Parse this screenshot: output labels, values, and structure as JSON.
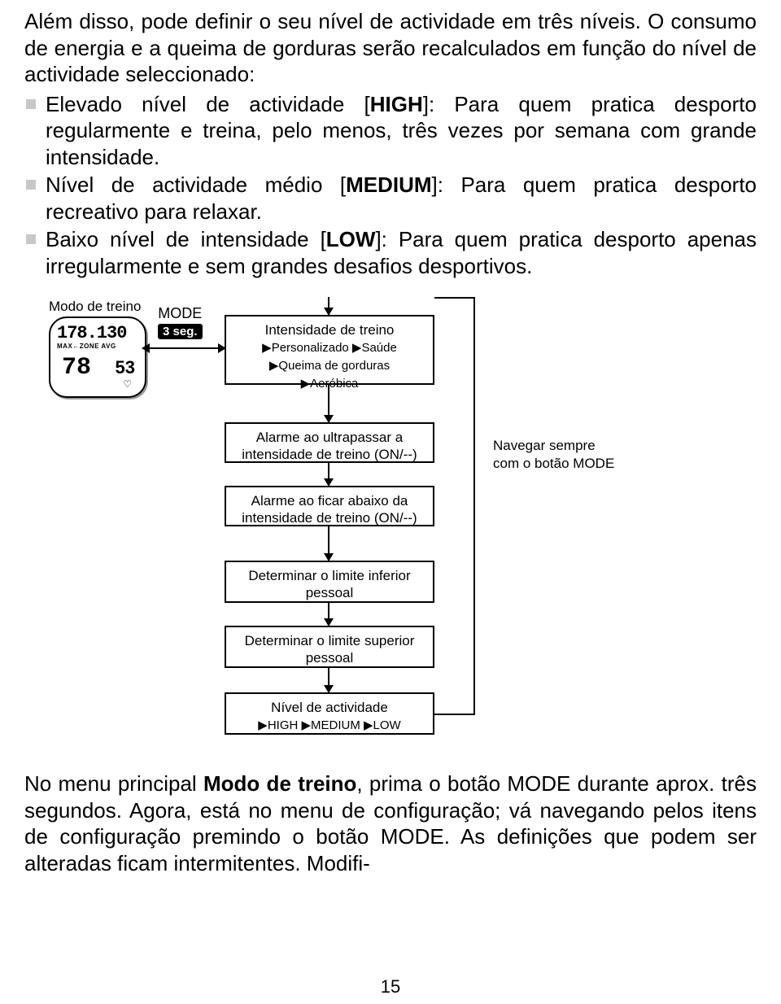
{
  "intro": {
    "p1": "Além disso, pode definir o seu nível de actividade em três níveis. O consumo de energia e a queima de gorduras serão recalculados em função do nível de actividade seleccionado:"
  },
  "bullets": {
    "b1_pre": "Elevado nível de actividade [",
    "b1_bold": "HIGH",
    "b1_post": "]: Para quem pratica desporto regularmente e treina, pelo menos, três vezes por semana com grande intensidade.",
    "b2_pre": "Nível de actividade médio [",
    "b2_bold": "MEDIUM",
    "b2_post": "]: Para quem pratica desporto recreativo para relaxar.",
    "b3_pre": "Baixo nível de intensidade [",
    "b3_bold": "LOW",
    "b3_post": "]: Para quem pratica desporto apenas irregularmente e sem grandes desafios desportivos."
  },
  "diagram": {
    "modo_label": "Modo de treino",
    "watch_digits": "178.130",
    "watch_sub": "MAX←ZONE  AVG",
    "watch_seg1": "78",
    "watch_seg2": "53",
    "watch_heart": "♡",
    "mode_word": "MODE",
    "mode_sec": "3 seg.",
    "box1_l1": "Intensidade de treino",
    "box1_l2": "▶Personalizado ▶Saúde",
    "box1_l3": "▶Queima de gorduras",
    "box1_l4": "▶Aeróbica",
    "box2_l1": "Alarme ao ultrapassar a",
    "box2_l2": "intensidade de treino (ON/--)",
    "box3_l1": "Alarme ao ficar abaixo da",
    "box3_l2": "intensidade de treino (ON/--)",
    "box4_l1": "Determinar o limite inferior",
    "box4_l2": "pessoal",
    "box5_l1": "Determinar o limite superior",
    "box5_l2": "pessoal",
    "box6_l1": "Nível de actividade",
    "box6_l2": "▶HIGH ▶MEDIUM ▶LOW",
    "sidenote": "Navegar sempre com o botão MODE"
  },
  "footer": {
    "p_pre": "No menu principal ",
    "p_bold": "Modo de treino",
    "p_post": ", prima o botão MODE durante aprox. três segundos. Agora, está no menu de configuração; vá navegando pelos itens de configuração premindo o botão MODE. As definições que podem ser alteradas ficam intermitentes. Modifi-"
  },
  "page_number": "15"
}
